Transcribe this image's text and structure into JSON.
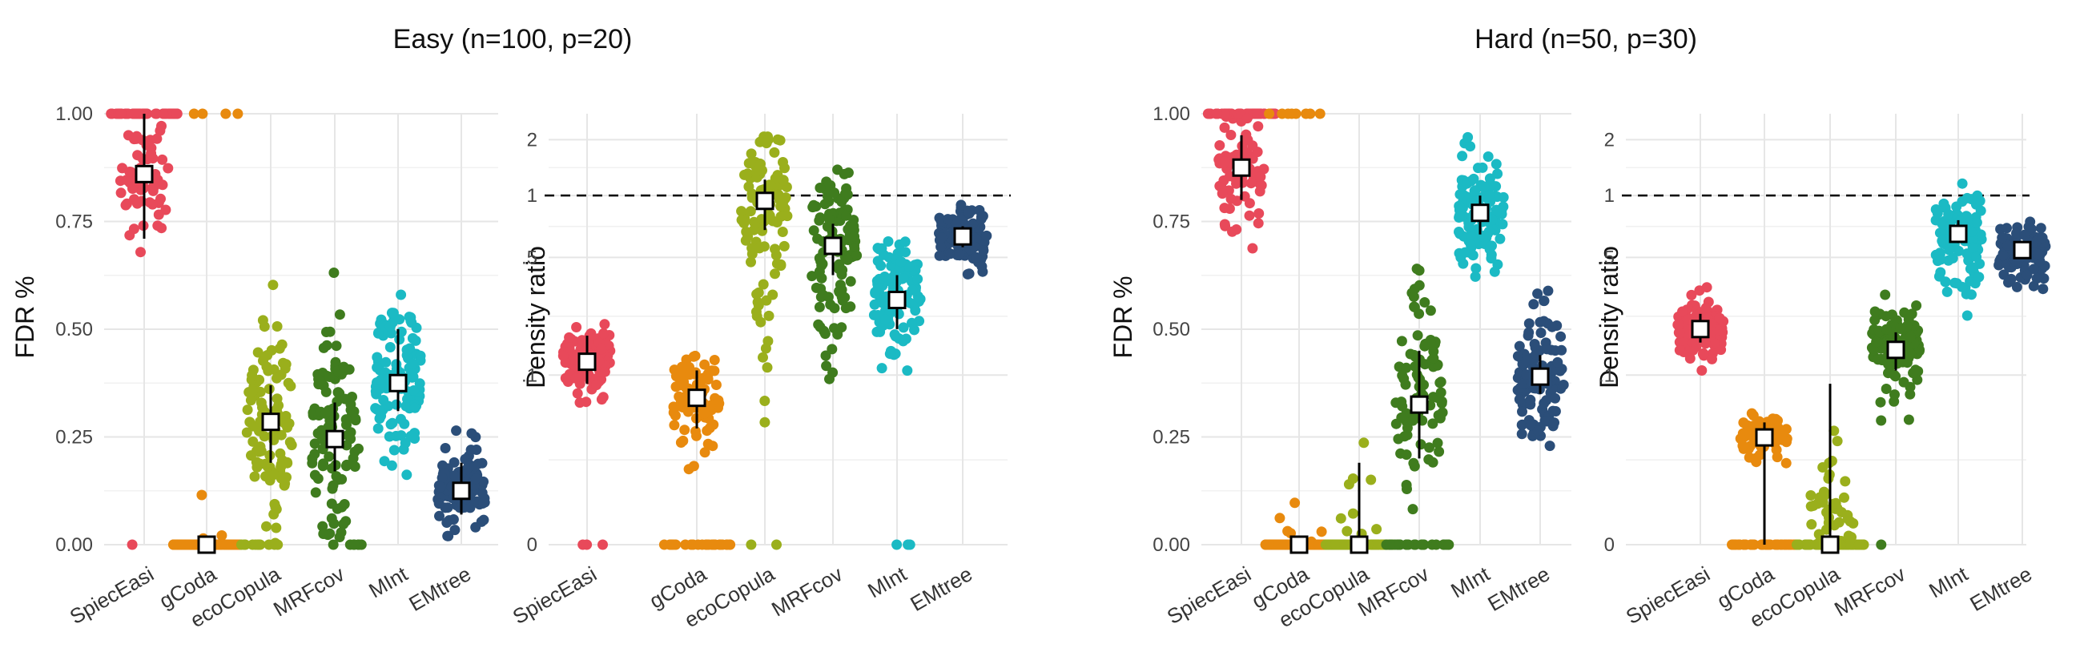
{
  "groups": [
    {
      "title": "Easy (n=100, p=20)"
    },
    {
      "title": "Hard (n=50, p=30)"
    }
  ],
  "methods": [
    "SpiecEasi",
    "gCoda",
    "ecoCopula",
    "MRFcov",
    "MInt",
    "EMtree"
  ],
  "colors": {
    "SpiecEasi": "#e8495a",
    "gCoda": "#e88a0e",
    "ecoCopula": "#9aaf1c",
    "MRFcov": "#3f7c1e",
    "MInt": "#1bbac4",
    "EMtree": "#2b4e79"
  },
  "chart_data": [
    {
      "type": "scatter",
      "group": "Easy (n=100, p=20)",
      "ylabel": "FDR %",
      "yticks": [
        "0.00",
        "0.25",
        "0.50",
        "0.75",
        "1.00"
      ],
      "ylim": [
        0,
        1
      ],
      "categories": [
        "SpiecEasi",
        "gCoda",
        "ecoCopula",
        "MRFcov",
        "MInt",
        "EMtree"
      ],
      "summary": [
        {
          "method": "SpiecEasi",
          "median": 0.86,
          "q_low": 0.71,
          "q_high": 1.0
        },
        {
          "method": "gCoda",
          "median": 0.0,
          "q_low": 0.0,
          "q_high": 0.0
        },
        {
          "method": "ecoCopula",
          "median": 0.285,
          "q_low": 0.19,
          "q_high": 0.37
        },
        {
          "method": "MRFcov",
          "median": 0.245,
          "q_low": 0.17,
          "q_high": 0.33
        },
        {
          "method": "MInt",
          "median": 0.375,
          "q_low": 0.31,
          "q_high": 0.5
        },
        {
          "method": "EMtree",
          "median": 0.125,
          "q_low": 0.07,
          "q_high": 0.19
        }
      ]
    },
    {
      "type": "scatter",
      "group": "Easy (n=100, p=20)",
      "ylabel": "Density ratio",
      "yticks": [
        "0",
        ".1",
        ".5",
        "1",
        "2"
      ],
      "ylim": [
        0,
        2.3
      ],
      "reference_line": 1,
      "categories": [
        "SpiecEasi",
        "gCoda",
        "ecoCopula",
        "MRFcov",
        "MInt",
        "EMtree"
      ],
      "summary": [
        {
          "method": "SpiecEasi",
          "median": 0.13,
          "q_low": 0.09,
          "q_high": 0.2
        },
        {
          "method": "gCoda",
          "median": 0.075,
          "q_low": 0.047,
          "q_high": 0.11
        },
        {
          "method": "ecoCopula",
          "median": 0.95,
          "q_low": 0.7,
          "q_high": 1.25
        },
        {
          "method": "MRFcov",
          "median": 0.58,
          "q_low": 0.42,
          "q_high": 0.75
        },
        {
          "method": "MInt",
          "median": 0.32,
          "q_low": 0.22,
          "q_high": 0.42
        },
        {
          "method": "EMtree",
          "median": 0.65,
          "q_low": 0.57,
          "q_high": 0.73
        }
      ]
    },
    {
      "type": "scatter",
      "group": "Hard (n=50, p=30)",
      "ylabel": "FDR %",
      "yticks": [
        "0.00",
        "0.25",
        "0.50",
        "0.75",
        "1.00"
      ],
      "ylim": [
        0,
        1
      ],
      "categories": [
        "SpiecEasi",
        "gCoda",
        "ecoCopula",
        "MRFcov",
        "MInt",
        "EMtree"
      ],
      "summary": [
        {
          "method": "SpiecEasi",
          "median": 0.875,
          "q_low": 0.8,
          "q_high": 0.95
        },
        {
          "method": "gCoda",
          "median": 0.0,
          "q_low": 0.0,
          "q_high": 0.0
        },
        {
          "method": "ecoCopula",
          "median": 0.0,
          "q_low": 0.0,
          "q_high": 0.19
        },
        {
          "method": "MRFcov",
          "median": 0.325,
          "q_low": 0.2,
          "q_high": 0.45
        },
        {
          "method": "MInt",
          "median": 0.77,
          "q_low": 0.72,
          "q_high": 0.81
        },
        {
          "method": "EMtree",
          "median": 0.39,
          "q_low": 0.35,
          "q_high": 0.44
        }
      ]
    },
    {
      "type": "scatter",
      "group": "Hard (n=50, p=30)",
      "ylabel": "Density ratio",
      "yticks": [
        "0",
        ".1",
        ".5",
        "1",
        "2"
      ],
      "ylim": [
        0,
        2.3
      ],
      "reference_line": 1,
      "categories": [
        "SpiecEasi",
        "gCoda",
        "ecoCopula",
        "MRFcov",
        "MInt",
        "EMtree"
      ],
      "summary": [
        {
          "method": "SpiecEasi",
          "median": 0.22,
          "q_low": 0.18,
          "q_high": 0.27
        },
        {
          "method": "gCoda",
          "median": 0.04,
          "q_low": 0.0,
          "q_high": 0.052
        },
        {
          "method": "ecoCopula",
          "median": 0.0,
          "q_low": 0.0,
          "q_high": 0.09
        },
        {
          "method": "MRFcov",
          "median": 0.16,
          "q_low": 0.11,
          "q_high": 0.21
        },
        {
          "method": "MInt",
          "median": 0.67,
          "q_low": 0.6,
          "q_high": 0.78
        },
        {
          "method": "EMtree",
          "median": 0.55,
          "q_low": 0.5,
          "q_high": 0.6
        }
      ]
    }
  ]
}
